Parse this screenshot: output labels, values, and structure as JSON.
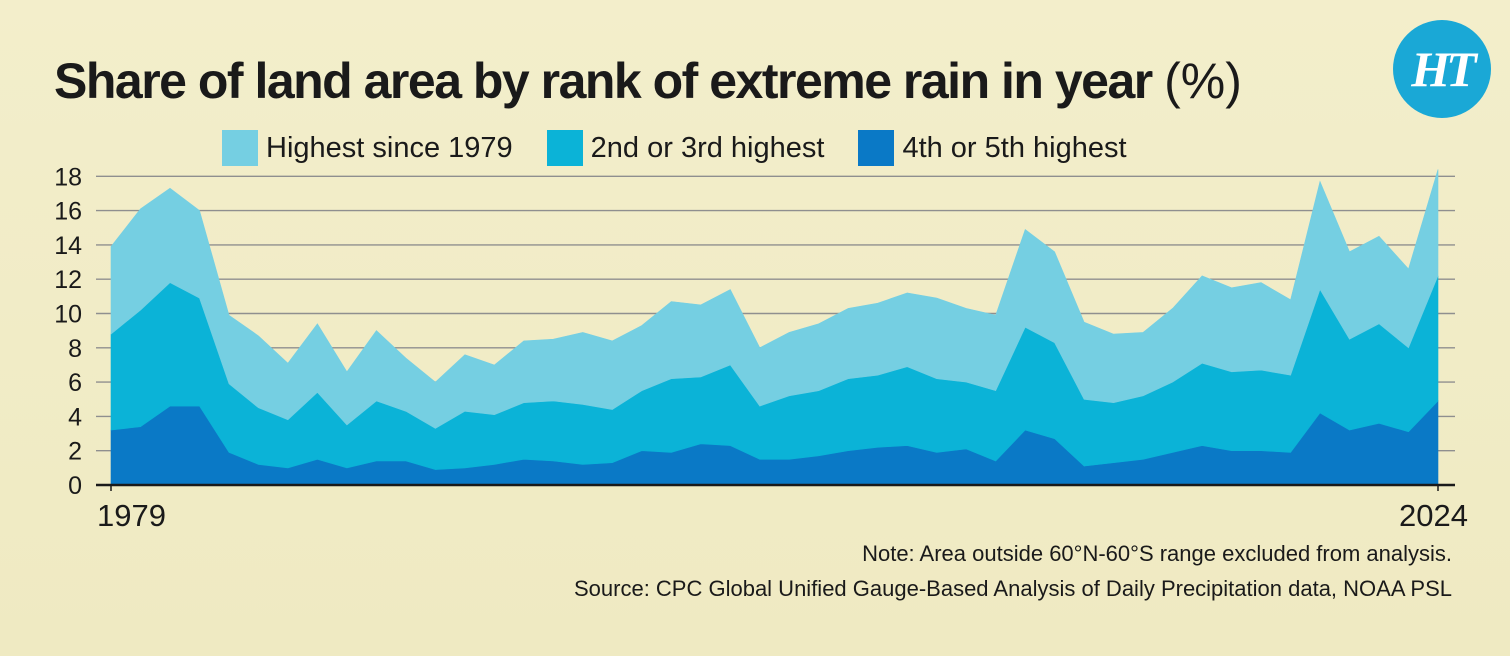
{
  "title": "Share of land area by rank of extreme rain in year",
  "title_unit": "(%)",
  "logo_text": "HT",
  "note": "Note: Area outside 60°N-60°S range excluded from analysis.",
  "source": "Source:  CPC Global Unified Gauge-Based Analysis of Daily Precipitation data, NOAA PSL",
  "colors": {
    "background": "#f1ecc6",
    "grid": "#8f8f8f",
    "logo": "#1aa8d6"
  },
  "chart_data": {
    "type": "area",
    "stacked": true,
    "x": [
      1979,
      1980,
      1981,
      1982,
      1983,
      1984,
      1985,
      1986,
      1987,
      1988,
      1989,
      1990,
      1991,
      1992,
      1993,
      1994,
      1995,
      1996,
      1997,
      1998,
      1999,
      2000,
      2001,
      2002,
      2003,
      2004,
      2005,
      2006,
      2007,
      2008,
      2009,
      2010,
      2011,
      2012,
      2013,
      2014,
      2015,
      2016,
      2017,
      2018,
      2019,
      2020,
      2021,
      2022,
      2023,
      2024
    ],
    "x_tick_labels": [
      {
        "x": 1979,
        "label": "1979",
        "align": "left"
      },
      {
        "x": 2024,
        "label": "2024",
        "align": "right"
      }
    ],
    "y_ticks": [
      "0",
      "2",
      "4",
      "6",
      "8",
      "10",
      "12",
      "14",
      "16",
      "18"
    ],
    "ylim": [
      0,
      18.5
    ],
    "xlabel": "",
    "ylabel": "",
    "grid": true,
    "legend_position": "top",
    "series": [
      {
        "name": "4th or 5th highest",
        "color": "#0a79c6",
        "values": [
          3.2,
          3.4,
          4.6,
          4.6,
          1.9,
          1.2,
          1.0,
          1.5,
          1.0,
          1.4,
          1.4,
          0.9,
          1.0,
          1.2,
          1.5,
          1.4,
          1.2,
          1.3,
          2.0,
          1.9,
          2.4,
          2.3,
          1.5,
          1.5,
          1.7,
          2.0,
          2.2,
          2.3,
          1.9,
          2.1,
          1.4,
          3.2,
          2.7,
          1.1,
          1.3,
          1.5,
          1.9,
          2.3,
          2.0,
          2.0,
          1.9,
          4.2,
          3.2,
          3.6,
          3.1,
          4.9
        ]
      },
      {
        "name": "2nd or 3rd highest",
        "color": "#0bb3d7",
        "values": [
          5.6,
          6.8,
          7.2,
          6.3,
          4.0,
          3.3,
          2.8,
          3.9,
          2.5,
          3.5,
          2.9,
          2.4,
          3.3,
          2.9,
          3.3,
          3.5,
          3.5,
          3.1,
          3.5,
          4.3,
          3.9,
          4.7,
          3.1,
          3.7,
          3.8,
          4.2,
          4.2,
          4.6,
          4.3,
          3.9,
          4.1,
          6.0,
          5.6,
          3.9,
          3.5,
          3.7,
          4.1,
          4.8,
          4.6,
          4.7,
          4.5,
          7.2,
          5.3,
          5.8,
          4.9,
          7.3
        ]
      },
      {
        "name": "Highest since 1979",
        "color": "#75cfe2",
        "values": [
          5.1,
          5.9,
          5.5,
          5.1,
          4.0,
          4.2,
          3.3,
          4.0,
          3.1,
          4.1,
          3.1,
          2.7,
          3.3,
          2.9,
          3.6,
          3.6,
          4.2,
          4.0,
          3.8,
          4.5,
          4.2,
          4.4,
          3.4,
          3.7,
          3.9,
          4.1,
          4.2,
          4.3,
          4.7,
          4.3,
          4.4,
          5.7,
          5.3,
          4.5,
          4.0,
          3.7,
          4.3,
          5.1,
          4.9,
          5.1,
          4.4,
          6.3,
          5.1,
          5.1,
          4.6,
          6.2
        ]
      }
    ]
  }
}
